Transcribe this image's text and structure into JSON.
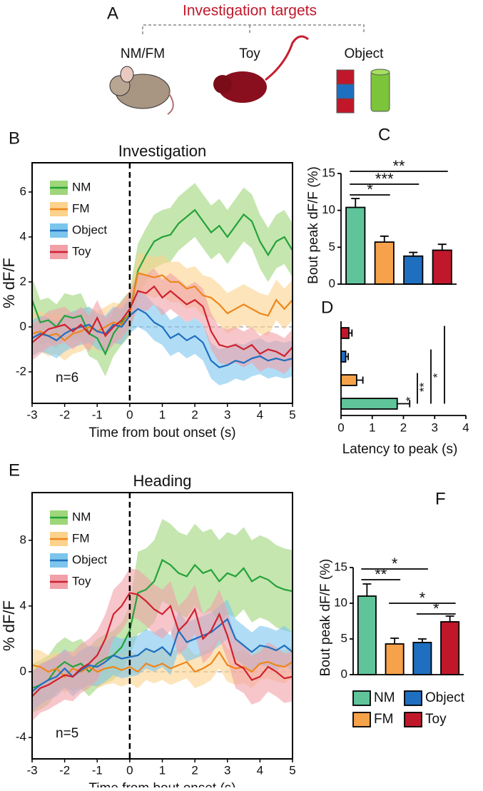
{
  "figure": {
    "targets_title": "Investigation targets",
    "targets": [
      "NM/FM",
      "Toy",
      "Object"
    ],
    "panel": "A"
  },
  "chart_data": [
    {
      "type": "line",
      "panel": "B",
      "title": "Investigation",
      "xlabel": "Time from bout onset (s)",
      "ylabel": "% dF/F",
      "annotation": "n=6",
      "xlim": [
        -3,
        5
      ],
      "xticks": [
        -3,
        -2,
        -1,
        0,
        1,
        2,
        3,
        4,
        5
      ],
      "ylim": [
        -3.4,
        7.3
      ],
      "yticks": [
        -2,
        0,
        2,
        4,
        6
      ],
      "x": [
        -3,
        -2.75,
        -2.5,
        -2.25,
        -2,
        -1.75,
        -1.5,
        -1.25,
        -1,
        -0.75,
        -0.5,
        -0.25,
        0,
        0.25,
        0.5,
        0.75,
        1,
        1.25,
        1.5,
        1.75,
        2,
        2.25,
        2.5,
        2.75,
        3,
        3.25,
        3.5,
        3.75,
        4,
        4.25,
        4.5,
        4.75,
        5
      ],
      "series": [
        {
          "name": "NM",
          "color": "#24a23a",
          "band_color": "#9fd67a",
          "values": [
            1.2,
            0.2,
            0.3,
            0.0,
            0.5,
            0.4,
            0.5,
            -0.3,
            -0.5,
            -1.2,
            -0.3,
            0.2,
            0.6,
            2.5,
            3.2,
            3.8,
            4.0,
            4.1,
            4.6,
            4.9,
            5.2,
            4.7,
            4.2,
            4.5,
            4.0,
            4.5,
            5.0,
            4.7,
            3.8,
            3.2,
            3.8,
            4.0,
            3.4
          ],
          "errors": [
            1.0,
            1.0,
            1.0,
            1.0,
            1.0,
            1.0,
            1.0,
            1.0,
            1.0,
            1.0,
            1.0,
            1.0,
            1.0,
            1.2,
            1.2,
            1.2,
            1.2,
            1.2,
            1.2,
            1.2,
            1.2,
            1.2,
            1.2,
            1.2,
            1.2,
            1.2,
            1.2,
            1.2,
            1.2,
            1.2,
            1.2,
            1.2,
            1.2
          ]
        },
        {
          "name": "FM",
          "color": "#ee861a",
          "band_color": "#fcd28c",
          "values": [
            -0.3,
            -0.2,
            -0.4,
            -0.3,
            -0.6,
            -0.3,
            -0.2,
            0,
            -0.2,
            0,
            0.2,
            0.1,
            0.6,
            2.4,
            2.3,
            2.2,
            2.3,
            2.0,
            2.0,
            1.7,
            1.8,
            1.4,
            1.3,
            1.0,
            0.6,
            0.8,
            1.0,
            0.8,
            0.6,
            0.5,
            1.2,
            0.8,
            1.2
          ],
          "errors": [
            0.9,
            0.9,
            0.9,
            0.9,
            0.9,
            0.9,
            0.9,
            0.9,
            0.9,
            0.9,
            0.9,
            0.9,
            0.9,
            0.9,
            0.9,
            0.9,
            0.9,
            0.9,
            0.9,
            0.9,
            0.9,
            0.9,
            0.9,
            0.9,
            0.9,
            0.9,
            0.9,
            0.9,
            0.9,
            0.9,
            0.9,
            0.9,
            0.9
          ]
        },
        {
          "name": "Object",
          "color": "#1f6fc0",
          "band_color": "#7cc6ee",
          "values": [
            -0.5,
            -0.3,
            -0.4,
            -0.6,
            -0.3,
            -0.1,
            0,
            0.1,
            -0.2,
            -0.3,
            0.1,
            0,
            0.5,
            0.8,
            0.6,
            0.2,
            0,
            -0.5,
            -0.3,
            -0.6,
            -0.4,
            -0.7,
            -1.5,
            -1.8,
            -1.7,
            -1.5,
            -1.6,
            -1.4,
            -1.3,
            -1.5,
            -1.4,
            -1.5,
            -1.4
          ],
          "errors": [
            0.8,
            0.8,
            0.8,
            0.8,
            0.8,
            0.8,
            0.8,
            0.8,
            0.8,
            0.8,
            0.8,
            0.8,
            0.8,
            0.8,
            0.8,
            0.8,
            0.8,
            0.8,
            0.8,
            0.8,
            0.8,
            0.8,
            0.8,
            0.8,
            0.8,
            0.8,
            0.8,
            0.8,
            0.8,
            0.8,
            0.8,
            0.8,
            0.8
          ]
        },
        {
          "name": "Toy",
          "color": "#d0202e",
          "band_color": "#f1a0a8",
          "values": [
            -0.7,
            -0.4,
            -0.1,
            0,
            0.1,
            -0.2,
            0.1,
            -0.3,
            0.4,
            -0.4,
            0,
            0.3,
            0.8,
            1.6,
            1.5,
            1.8,
            1.3,
            1.6,
            1.3,
            1.0,
            1.2,
            0.9,
            -0.2,
            -0.8,
            -0.9,
            -0.8,
            -1.0,
            -0.8,
            -1.2,
            -1.0,
            -1.1,
            -1.3,
            -0.9
          ],
          "errors": [
            0.8,
            0.8,
            0.8,
            0.8,
            0.8,
            0.8,
            0.8,
            0.8,
            0.8,
            0.8,
            0.8,
            0.8,
            0.8,
            0.8,
            0.8,
            0.8,
            0.8,
            0.8,
            0.8,
            0.8,
            0.8,
            0.8,
            0.8,
            0.8,
            0.8,
            0.8,
            0.8,
            0.8,
            0.8,
            0.8,
            0.8,
            0.8,
            0.8
          ]
        }
      ]
    },
    {
      "type": "bar",
      "panel": "C",
      "ylabel": "Bout peak dF/F (%)",
      "ylim": [
        0,
        15
      ],
      "yticks": [
        0,
        5,
        10,
        15
      ],
      "values": [
        10.4,
        5.7,
        3.8,
        4.6
      ],
      "errors": [
        1.2,
        0.8,
        0.5,
        0.8
      ],
      "colors": [
        "#5fc49a",
        "#f5a24a",
        "#1f6fc0",
        "#c0182a"
      ],
      "comparisons": [
        {
          "label": "*",
          "groups": [
            0,
            1
          ]
        },
        {
          "label": "***",
          "groups": [
            0,
            2
          ]
        },
        {
          "label": "**",
          "groups": [
            0,
            3
          ]
        }
      ]
    },
    {
      "type": "bar",
      "orientation": "horizontal",
      "panel": "D",
      "xlabel": "Latency to peak (s)",
      "xlim": [
        0,
        4
      ],
      "xticks": [
        0,
        1,
        2,
        3,
        4
      ],
      "values": [
        1.8,
        0.5,
        0.15,
        0.25
      ],
      "errors": [
        0.4,
        0.2,
        0.08,
        0.1
      ],
      "colors": [
        "#5fc49a",
        "#f5a24a",
        "#1f6fc0",
        "#c0182a"
      ],
      "comparisons": [
        {
          "label": "*",
          "groups": [
            0,
            1
          ]
        },
        {
          "label": "**",
          "groups": [
            0,
            2
          ]
        },
        {
          "label": "*",
          "groups": [
            0,
            3
          ]
        }
      ]
    },
    {
      "type": "line",
      "panel": "E",
      "title": "Heading",
      "xlabel": "Time from bout onset (s)",
      "ylabel": "% dF/F",
      "annotation": "n=5",
      "xlim": [
        -3,
        5
      ],
      "xticks": [
        -3,
        -2,
        -1,
        0,
        1,
        2,
        3,
        4,
        5
      ],
      "ylim": [
        -5.3,
        10.9
      ],
      "yticks": [
        -4,
        0,
        4,
        8
      ],
      "x": [
        -3,
        -2.75,
        -2.5,
        -2.25,
        -2,
        -1.75,
        -1.5,
        -1.25,
        -1,
        -0.75,
        -0.5,
        -0.25,
        0,
        0.25,
        0.5,
        0.75,
        1,
        1.25,
        1.5,
        1.75,
        2,
        2.25,
        2.5,
        2.75,
        3,
        3.25,
        3.5,
        3.75,
        4,
        4.25,
        4.5,
        4.75,
        5
      ],
      "series": [
        {
          "name": "NM",
          "color": "#24a23a",
          "band_color": "#9fd67a",
          "values": [
            -1.0,
            -0.8,
            -0.5,
            0.2,
            0.6,
            0.3,
            0.5,
            0.0,
            0.5,
            0.8,
            1.0,
            1.5,
            2.5,
            4.8,
            5.0,
            5.5,
            6.8,
            6.5,
            6.0,
            5.8,
            6.5,
            6.0,
            6.2,
            5.5,
            6.0,
            5.8,
            6.3,
            5.5,
            5.8,
            5.6,
            5.2,
            5.0,
            4.9
          ],
          "errors": [
            1.5,
            1.5,
            1.5,
            1.5,
            1.5,
            1.5,
            1.5,
            1.5,
            1.5,
            1.5,
            1.5,
            1.5,
            1.5,
            2.5,
            2.5,
            2.5,
            2.5,
            2.5,
            2.5,
            2.5,
            2.5,
            2.5,
            2.5,
            2.5,
            2.5,
            2.5,
            2.5,
            2.5,
            2.5,
            2.5,
            2.5,
            2.5,
            2.5
          ]
        },
        {
          "name": "FM",
          "color": "#ee861a",
          "band_color": "#fcd28c",
          "values": [
            0.4,
            0.3,
            0,
            0.2,
            -0.3,
            0.2,
            0,
            0.3,
            0,
            0.2,
            0.3,
            0.1,
            0.3,
            0,
            0.5,
            0.3,
            0.5,
            0.2,
            0.4,
            0.6,
            0,
            0.2,
            0.5,
            1.2,
            0.4,
            0.2,
            0.3,
            0,
            0.5,
            0.6,
            0.4,
            0.3,
            0.6
          ],
          "errors": [
            1.0,
            1.0,
            1.0,
            1.0,
            1.0,
            1.0,
            1.0,
            1.0,
            1.0,
            1.0,
            1.0,
            1.0,
            1.0,
            1.0,
            1.0,
            1.0,
            1.0,
            1.0,
            1.0,
            1.0,
            1.0,
            1.0,
            1.0,
            1.0,
            1.0,
            1.0,
            1.0,
            1.0,
            1.0,
            1.0,
            1.0,
            1.0,
            1.0
          ]
        },
        {
          "name": "Object",
          "color": "#1f6fc0",
          "band_color": "#7cc6ee",
          "values": [
            -1.2,
            -0.8,
            -0.5,
            -0.3,
            0.2,
            -0.3,
            0.1,
            0.4,
            0.3,
            0.6,
            1.0,
            0.8,
            0.9,
            1.0,
            1.4,
            1.2,
            1.5,
            1.0,
            2.5,
            1.8,
            2.0,
            2.2,
            2.4,
            2.8,
            3.2,
            2.0,
            1.6,
            1.2,
            1.6,
            1.5,
            1.3,
            1.6,
            1.2
          ],
          "errors": [
            1.2,
            1.2,
            1.2,
            1.2,
            1.2,
            1.2,
            1.2,
            1.2,
            1.2,
            1.2,
            1.2,
            1.2,
            1.2,
            1.2,
            1.2,
            1.2,
            1.2,
            1.2,
            1.2,
            1.2,
            1.2,
            1.2,
            1.2,
            1.2,
            1.2,
            1.2,
            1.2,
            1.2,
            1.2,
            1.2,
            1.2,
            1.2,
            1.2
          ]
        },
        {
          "name": "Toy",
          "color": "#d0202e",
          "band_color": "#f1a0a8",
          "values": [
            -1.5,
            -1.0,
            -0.8,
            -0.5,
            -0.2,
            -0.3,
            0.2,
            0.5,
            1.0,
            2.0,
            3.5,
            4.0,
            4.8,
            4.7,
            4.3,
            3.8,
            3.5,
            4.0,
            2.5,
            3.0,
            3.8,
            2.0,
            2.5,
            3.5,
            2.2,
            0.5,
            0.2,
            -0.5,
            -0.3,
            0.3,
            0,
            -0.4,
            -0.3
          ],
          "errors": [
            1.5,
            1.5,
            1.5,
            1.5,
            1.5,
            1.5,
            1.5,
            1.5,
            1.5,
            1.5,
            1.5,
            1.5,
            1.5,
            1.5,
            1.5,
            1.5,
            1.5,
            1.5,
            1.5,
            1.5,
            1.5,
            1.5,
            1.5,
            1.5,
            1.5,
            1.5,
            1.5,
            1.5,
            1.5,
            1.5,
            1.5,
            1.5,
            1.5
          ]
        }
      ]
    },
    {
      "type": "bar",
      "panel": "F",
      "ylabel": "Bout peak dF/F (%)",
      "ylim": [
        0,
        15
      ],
      "yticks": [
        0,
        5,
        10,
        15
      ],
      "values": [
        11.0,
        4.3,
        4.5,
        7.4
      ],
      "errors": [
        1.7,
        0.8,
        0.5,
        0.8
      ],
      "colors": [
        "#5fc49a",
        "#f5a24a",
        "#1f6fc0",
        "#c0182a"
      ],
      "legend": [
        "NM",
        "FM",
        "Object",
        "Toy"
      ],
      "comparisons": [
        {
          "label": "**",
          "groups": [
            0,
            1
          ]
        },
        {
          "label": "*",
          "groups": [
            0,
            2
          ]
        },
        {
          "label": "*",
          "groups": [
            1,
            3
          ]
        },
        {
          "label": "*",
          "groups": [
            2,
            3
          ]
        }
      ]
    }
  ]
}
